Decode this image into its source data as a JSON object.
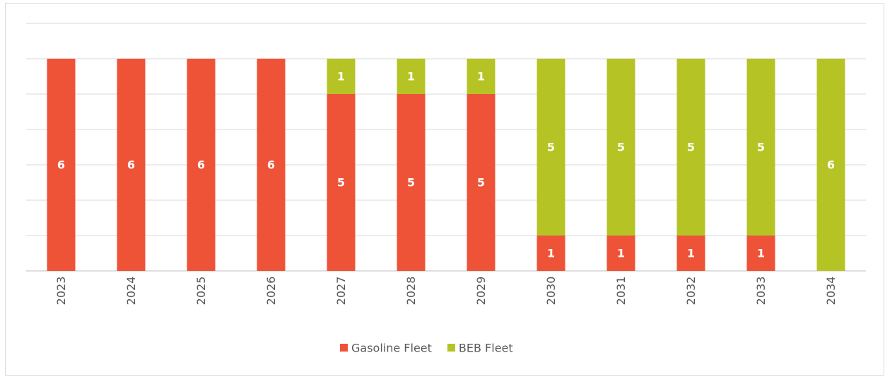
{
  "chart_data": {
    "type": "stacked_bar",
    "categories": [
      "2023",
      "2024",
      "2025",
      "2026",
      "2027",
      "2028",
      "2029",
      "2030",
      "2031",
      "2032",
      "2033",
      "2034"
    ],
    "series": [
      {
        "name": "Gasoline Fleet",
        "color": "#ee5338",
        "values": [
          6,
          6,
          6,
          6,
          5,
          5,
          5,
          1,
          1,
          1,
          1,
          0
        ]
      },
      {
        "name": "BEB Fleet",
        "color": "#b5c424",
        "values": [
          0,
          0,
          0,
          0,
          1,
          1,
          1,
          5,
          5,
          5,
          5,
          6
        ]
      }
    ],
    "ylim": [
      0,
      7
    ],
    "yticks": [
      0,
      1,
      2,
      3,
      4,
      5,
      6,
      7
    ],
    "grid": true,
    "legend": "bottom"
  }
}
